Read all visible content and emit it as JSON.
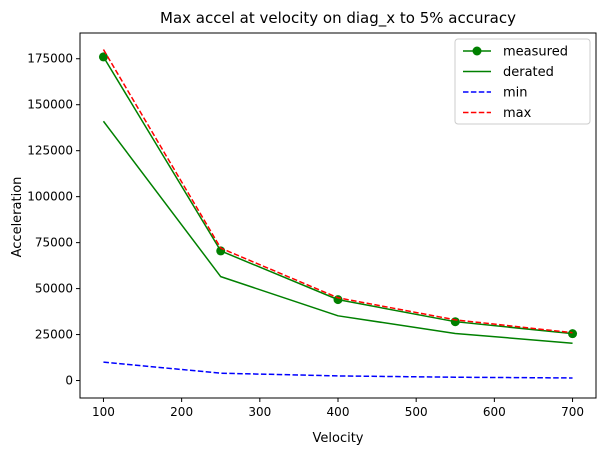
{
  "chart_data": {
    "type": "line",
    "title": "Max accel at velocity on diag_x to 5% accuracy",
    "xlabel": "Velocity",
    "ylabel": "Acceleration",
    "x": [
      100,
      250,
      400,
      550,
      700
    ],
    "xlim": [
      70,
      730
    ],
    "ylim": [
      -9500,
      189000
    ],
    "xticks": [
      100,
      200,
      300,
      400,
      500,
      600,
      700
    ],
    "yticks": [
      0,
      25000,
      50000,
      75000,
      100000,
      125000,
      150000,
      175000
    ],
    "grid": false,
    "legend_position": "top-right",
    "series": [
      {
        "name": "measured",
        "values": [
          176000,
          70500,
          44000,
          32000,
          25500
        ],
        "color": "#008000",
        "style": "solid",
        "marker": "circle"
      },
      {
        "name": "derated",
        "values": [
          141000,
          56500,
          35200,
          25600,
          20300
        ],
        "color": "#008000",
        "style": "solid",
        "marker": "none"
      },
      {
        "name": "min",
        "values": [
          10000,
          4000,
          2500,
          1800,
          1400
        ],
        "color": "#0000ff",
        "style": "dashed",
        "marker": "none"
      },
      {
        "name": "max",
        "values": [
          180000,
          72000,
          45000,
          33000,
          26000
        ],
        "color": "#ff0000",
        "style": "dashed",
        "marker": "none"
      }
    ]
  }
}
